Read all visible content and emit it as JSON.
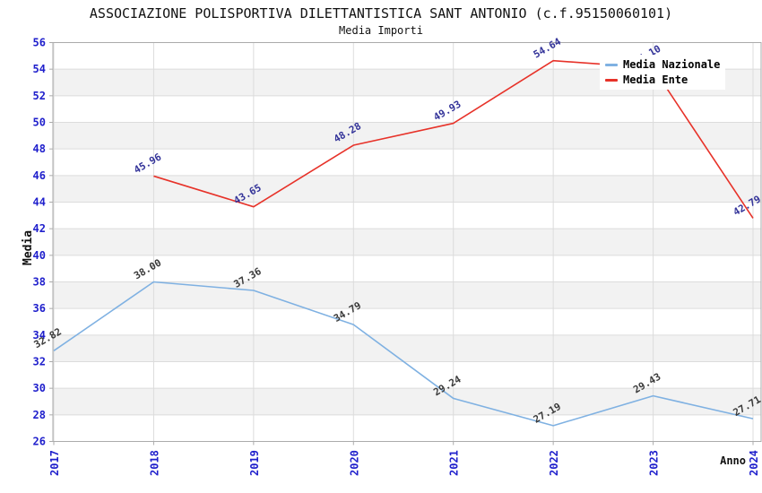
{
  "title": "ASSOCIAZIONE POLISPORTIVA DILETTANTISTICA SANT ANTONIO (c.f.95150060101)",
  "subtitle": "Media Importi",
  "chart_data": {
    "type": "line",
    "x": [
      "2017",
      "2018",
      "2019",
      "2020",
      "2021",
      "2022",
      "2023",
      "2024"
    ],
    "xlabel": "Anno",
    "ylabel": "Media",
    "ylim": [
      26,
      56
    ],
    "ytick_step": 2,
    "grid": true,
    "legend_position": "top-right",
    "series": [
      {
        "name": "Media Nazionale",
        "color": "#7FB1E2",
        "label_color": "#3A3A3A",
        "values": [
          32.82,
          38.0,
          37.36,
          34.79,
          29.24,
          27.19,
          29.43,
          27.71
        ]
      },
      {
        "name": "Media Ente",
        "color": "#E73229",
        "label_color": "#333399",
        "values": [
          null,
          45.96,
          43.65,
          48.28,
          49.93,
          54.64,
          54.1,
          42.79
        ]
      }
    ],
    "colors": {
      "tick_label": "#2020CC",
      "grid_line": "#DCDCDC",
      "band_fill": "#F2F2F2",
      "spine": "#ABABAB"
    }
  }
}
